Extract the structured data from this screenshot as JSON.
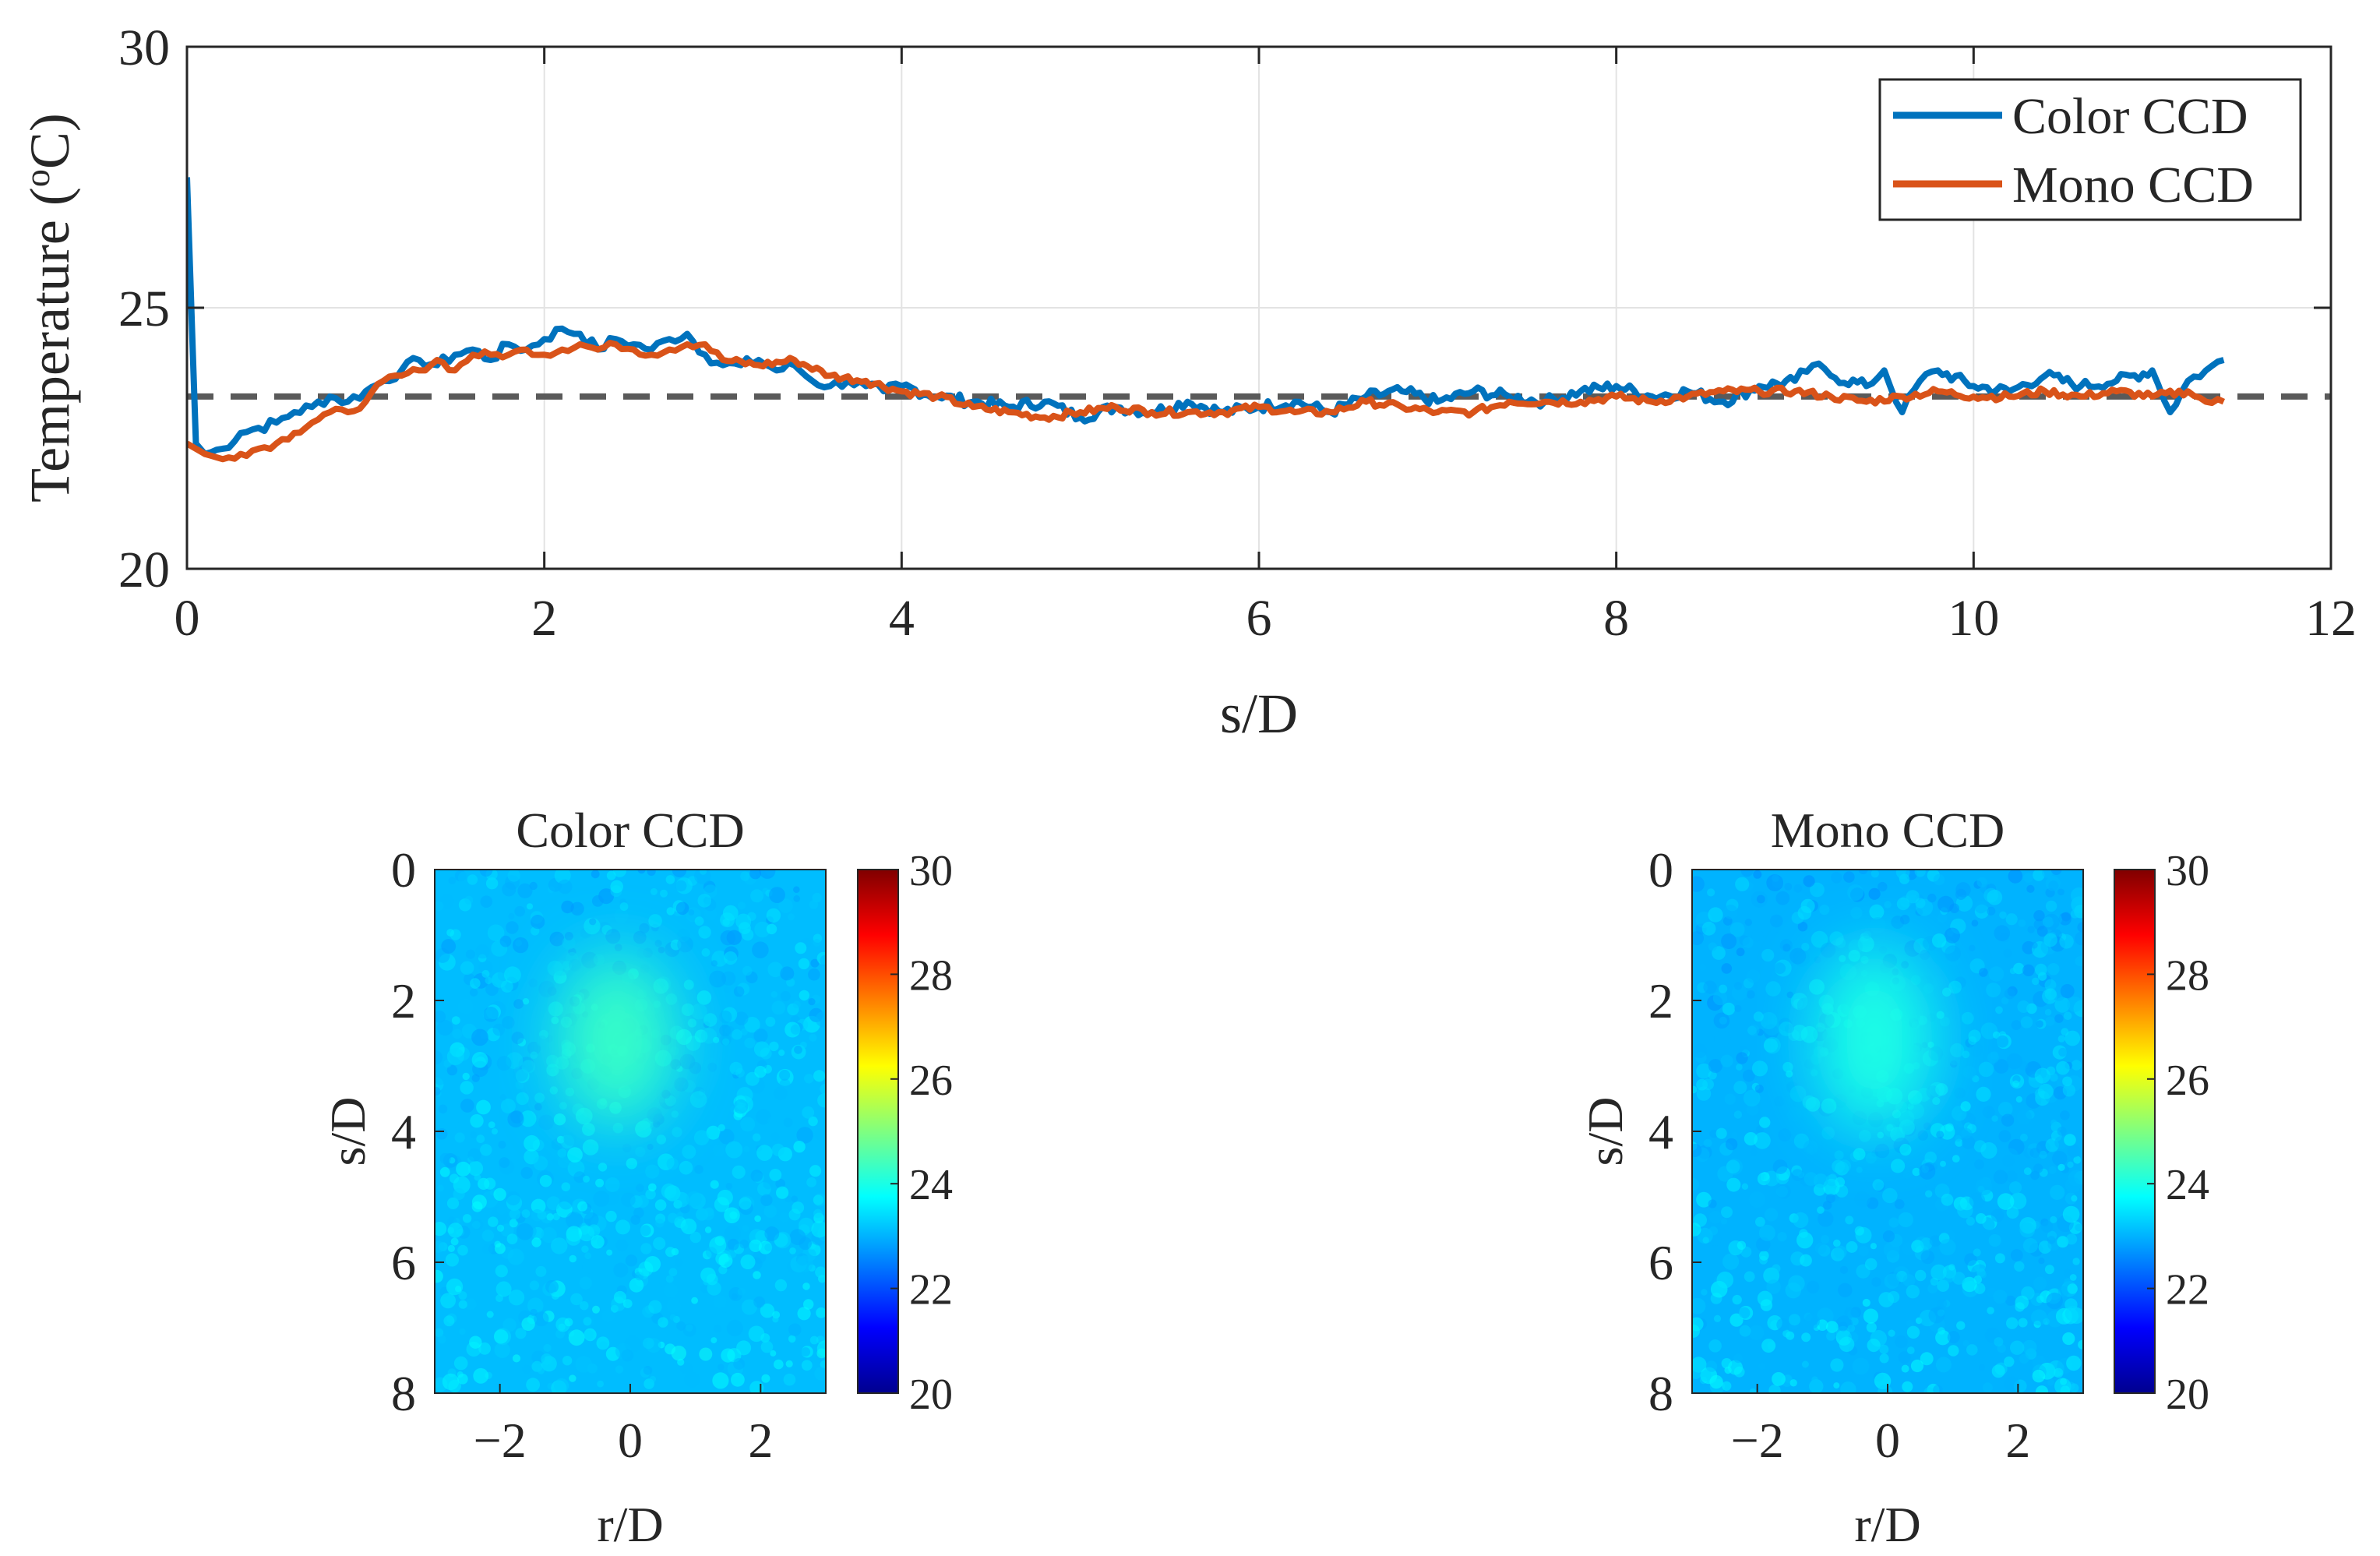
{
  "chart_data": [
    {
      "type": "line",
      "xlabel": "s/D",
      "ylabel": "Temperature (",
      "ylabel_sup": "o",
      "ylabel_tail": "C)",
      "xlim": [
        0,
        12
      ],
      "ylim": [
        20,
        30
      ],
      "xticks": [
        "0",
        "2",
        "4",
        "6",
        "8",
        "10",
        "12"
      ],
      "yticks": [
        "20",
        "25",
        "30"
      ],
      "grid": true,
      "legend": "top-right",
      "reference_line": {
        "y": 23.3,
        "style": "dashed",
        "color": "#5a5a5a"
      },
      "series": [
        {
          "name": "Color CCD",
          "color": "#0072bd",
          "x": [
            0,
            0.05,
            0.1,
            0.2,
            0.3,
            0.4,
            0.5,
            0.6,
            0.7,
            0.8,
            0.9,
            1.0,
            1.1,
            1.2,
            1.3,
            1.4,
            1.5,
            1.6,
            1.7,
            1.8,
            1.9,
            2.0,
            2.1,
            2.2,
            2.3,
            2.4,
            2.5,
            2.6,
            2.7,
            2.8,
            2.9,
            3.0,
            3.1,
            3.2,
            3.3,
            3.4,
            3.5,
            3.6,
            3.7,
            3.8,
            3.9,
            4.0,
            4.2,
            4.4,
            4.6,
            4.8,
            5.0,
            5.2,
            5.4,
            5.6,
            5.8,
            6.0,
            6.2,
            6.4,
            6.6,
            6.8,
            7.0,
            7.2,
            7.4,
            7.6,
            7.8,
            8.0,
            8.2,
            8.4,
            8.6,
            8.8,
            9.0,
            9.1,
            9.2,
            9.4,
            9.5,
            9.6,
            9.7,
            9.8,
            10.0,
            10.2,
            10.4,
            10.6,
            10.8,
            11.0,
            11.1,
            11.2,
            11.3,
            11.4
          ],
          "y": [
            27.5,
            22.4,
            22.2,
            22.3,
            22.6,
            22.7,
            22.8,
            23.0,
            23.1,
            23.3,
            23.2,
            23.4,
            23.6,
            23.8,
            24.0,
            23.9,
            24.1,
            24.2,
            24.0,
            24.3,
            24.2,
            24.4,
            24.6,
            24.5,
            24.2,
            24.4,
            24.3,
            24.2,
            24.4,
            24.5,
            24.1,
            23.9,
            23.9,
            24.0,
            23.8,
            23.9,
            23.6,
            23.5,
            23.6,
            23.5,
            23.4,
            23.5,
            23.3,
            23.2,
            23.1,
            23.2,
            22.9,
            23.1,
            23.0,
            23.2,
            23.0,
            23.1,
            23.2,
            23.0,
            23.3,
            23.4,
            23.2,
            23.4,
            23.3,
            23.2,
            23.4,
            23.5,
            23.3,
            23.4,
            23.2,
            23.5,
            23.6,
            23.9,
            23.7,
            23.5,
            23.8,
            23.0,
            23.6,
            23.8,
            23.5,
            23.4,
            23.7,
            23.5,
            23.6,
            23.8,
            23.0,
            23.6,
            23.8,
            24.0
          ]
        },
        {
          "name": "Mono CCD",
          "color": "#d95319",
          "x": [
            0,
            0.1,
            0.2,
            0.3,
            0.4,
            0.5,
            0.6,
            0.7,
            0.8,
            0.9,
            1.0,
            1.1,
            1.2,
            1.3,
            1.4,
            1.5,
            1.6,
            1.7,
            1.8,
            1.9,
            2.0,
            2.1,
            2.2,
            2.3,
            2.4,
            2.5,
            2.6,
            2.7,
            2.8,
            2.9,
            3.0,
            3.2,
            3.4,
            3.6,
            3.8,
            4.0,
            4.2,
            4.4,
            4.6,
            4.8,
            5.0,
            5.2,
            5.4,
            5.6,
            5.8,
            6.0,
            6.2,
            6.4,
            6.6,
            6.8,
            7.0,
            7.2,
            7.4,
            7.6,
            7.8,
            8.0,
            8.2,
            8.4,
            8.6,
            8.8,
            9.0,
            9.2,
            9.4,
            9.6,
            9.8,
            10.0,
            10.2,
            10.4,
            10.6,
            10.8,
            11.0,
            11.2,
            11.3,
            11.4
          ],
          "y": [
            22.4,
            22.2,
            22.1,
            22.2,
            22.3,
            22.4,
            22.6,
            22.8,
            23.0,
            23.0,
            23.2,
            23.6,
            23.7,
            23.8,
            24.0,
            23.8,
            24.1,
            24.1,
            24.1,
            24.2,
            24.1,
            24.2,
            24.3,
            24.2,
            24.3,
            24.2,
            24.1,
            24.2,
            24.3,
            24.3,
            24.0,
            23.9,
            24.0,
            23.7,
            23.6,
            23.4,
            23.3,
            23.1,
            23.0,
            22.9,
            23.0,
            23.1,
            23.0,
            23.0,
            23.0,
            23.1,
            23.0,
            23.0,
            23.2,
            23.1,
            23.0,
            23.0,
            23.2,
            23.2,
            23.2,
            23.3,
            23.2,
            23.3,
            23.4,
            23.4,
            23.4,
            23.3,
            23.2,
            23.3,
            23.4,
            23.3,
            23.3,
            23.4,
            23.3,
            23.4,
            23.3,
            23.4,
            23.2,
            23.2
          ]
        }
      ]
    },
    {
      "type": "heatmap",
      "title": "Color CCD",
      "xlabel": "r/D",
      "ylabel": "s/D",
      "xlim": [
        -3,
        3
      ],
      "ylim": [
        8,
        0
      ],
      "xticks": [
        "−2",
        "0",
        "2"
      ],
      "yticks": [
        "0",
        "2",
        "4",
        "6",
        "8"
      ],
      "colorbar": {
        "range": [
          20,
          30
        ],
        "ticks": [
          "20",
          "22",
          "24",
          "26",
          "28",
          "30"
        ],
        "colormap": "jet"
      },
      "background_value": 23.1,
      "hotspot": {
        "r": -0.2,
        "s": 2.6,
        "peak": 24.3,
        "width_r": 0.9,
        "width_s": 1.3
      }
    },
    {
      "type": "heatmap",
      "title": "Mono CCD",
      "xlabel": "r/D",
      "ylabel": "s/D",
      "xlim": [
        -3,
        3
      ],
      "ylim": [
        8,
        0
      ],
      "xticks": [
        "−2",
        "0",
        "2"
      ],
      "yticks": [
        "0",
        "2",
        "4",
        "6",
        "8"
      ],
      "colorbar": {
        "range": [
          20,
          30
        ],
        "ticks": [
          "20",
          "22",
          "24",
          "26",
          "28",
          "30"
        ],
        "colormap": "jet"
      },
      "background_value": 23.0,
      "hotspot": {
        "r": -0.2,
        "s": 2.6,
        "peak": 24.0,
        "width_r": 0.9,
        "width_s": 1.4
      }
    }
  ]
}
